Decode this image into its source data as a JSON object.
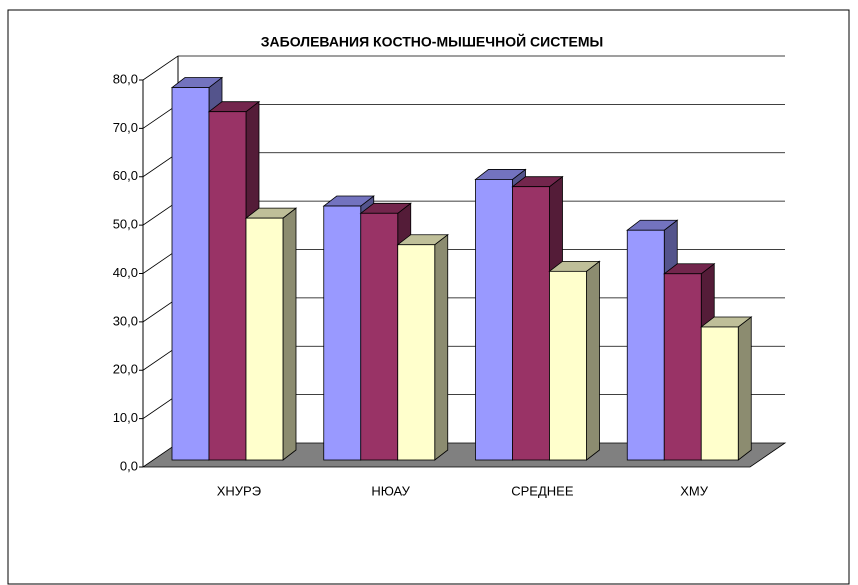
{
  "chart_data": {
    "type": "bar3d",
    "title": "ЗАБОЛЕВАНИЯ КОСТНО-МЫШЕЧНОЙ СИСТЕМЫ",
    "categories": [
      "ХНУРЭ",
      "НЮАУ",
      "СРЕДНЕЕ",
      "ХМУ"
    ],
    "series": [
      {
        "color": "#9999ff",
        "values": [
          77,
          52.5,
          58,
          47.5
        ]
      },
      {
        "color": "#993366",
        "values": [
          72,
          51,
          56.5,
          38.5
        ]
      },
      {
        "color": "#ffffcc",
        "values": [
          50,
          44.5,
          39,
          27.5
        ]
      }
    ],
    "ylim": [
      0,
      80
    ],
    "yticks": [
      {
        "value": 0,
        "label": "0,0"
      },
      {
        "value": 10,
        "label": "10,0"
      },
      {
        "value": 20,
        "label": "20,0"
      },
      {
        "value": 30,
        "label": "30,0"
      },
      {
        "value": 40,
        "label": "40,0"
      },
      {
        "value": 50,
        "label": "50,0"
      },
      {
        "value": 60,
        "label": "60,0"
      },
      {
        "value": 70,
        "label": "70,0"
      },
      {
        "value": 80,
        "label": "80,0"
      }
    ],
    "grid": true
  }
}
